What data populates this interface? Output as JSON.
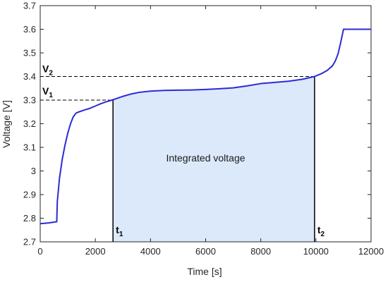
{
  "chart_data": {
    "type": "line",
    "xlabel": "Time [s]",
    "ylabel": "Voltage [V]",
    "xlim": [
      0,
      12000
    ],
    "ylim": [
      2.7,
      3.7
    ],
    "xticks": [
      0,
      2000,
      4000,
      6000,
      8000,
      10000,
      12000
    ],
    "yticks": [
      2.7,
      2.8,
      2.9,
      3.0,
      3.1,
      3.2,
      3.3,
      3.4,
      3.5,
      3.6,
      3.7
    ],
    "xtick_labels": [
      "0",
      "2000",
      "4000",
      "6000",
      "8000",
      "10000",
      "12000"
    ],
    "ytick_labels": [
      "2.7",
      "2.8",
      "2.9",
      "3",
      "3.1",
      "3.2",
      "3.3",
      "3.4",
      "3.5",
      "3.6",
      "3.7"
    ],
    "grid": false,
    "series": [
      {
        "color": "#2b2bd6",
        "x": [
          0,
          300,
          600,
          620,
          700,
          800,
          900,
          1000,
          1100,
          1200,
          1300,
          1400,
          1600,
          1800,
          2000,
          2200,
          2400,
          2600,
          2800,
          3000,
          3300,
          3600,
          4000,
          4500,
          5000,
          5500,
          6000,
          6500,
          7000,
          7500,
          8000,
          8500,
          9000,
          9500,
          9950,
          10200,
          10400,
          10600,
          10700,
          10800,
          10900,
          11000,
          11500,
          12000
        ],
        "y": [
          2.777,
          2.78,
          2.785,
          2.87,
          2.97,
          3.05,
          3.11,
          3.16,
          3.2,
          3.23,
          3.245,
          3.25,
          3.258,
          3.265,
          3.275,
          3.285,
          3.293,
          3.3,
          3.308,
          3.316,
          3.326,
          3.333,
          3.338,
          3.341,
          3.342,
          3.343,
          3.345,
          3.348,
          3.352,
          3.36,
          3.37,
          3.375,
          3.38,
          3.388,
          3.4,
          3.412,
          3.425,
          3.445,
          3.465,
          3.495,
          3.545,
          3.6,
          3.6,
          3.6
        ]
      }
    ],
    "shaded_region": {
      "x_start": 2640,
      "x_end": 9950,
      "color": "#dbe9fb",
      "label": "Integrated voltage",
      "label_x": 6000,
      "label_y": 3.04
    },
    "annotations": {
      "v1": {
        "main": "V",
        "sub": "1",
        "value": 3.3
      },
      "v2": {
        "main": "V",
        "sub": "2",
        "value": 3.4
      },
      "t1": {
        "main": "t",
        "sub": "1",
        "value": 2640
      },
      "t2": {
        "main": "t",
        "sub": "2",
        "value": 9950
      }
    }
  }
}
